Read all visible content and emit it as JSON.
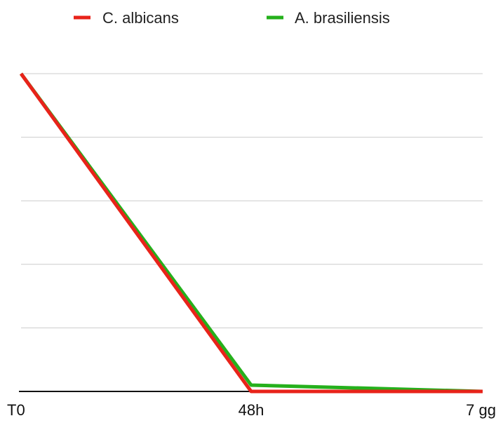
{
  "chart_data": {
    "type": "line",
    "categories": [
      "T0",
      "48h",
      "7 gg"
    ],
    "series": [
      {
        "name": "C. albicans",
        "values": [
          100,
          0,
          0
        ],
        "color": "#e8231a"
      },
      {
        "name": "A. brasiliensis",
        "values": [
          100,
          2,
          0
        ],
        "color": "#25b01c"
      }
    ],
    "ylim": [
      0,
      100
    ],
    "grid": true,
    "gridlines": 5,
    "legend": "top-center",
    "title": "",
    "xlabel": "",
    "ylabel": ""
  },
  "colors": {
    "grid": "#cccccc",
    "axis": "#111111"
  }
}
